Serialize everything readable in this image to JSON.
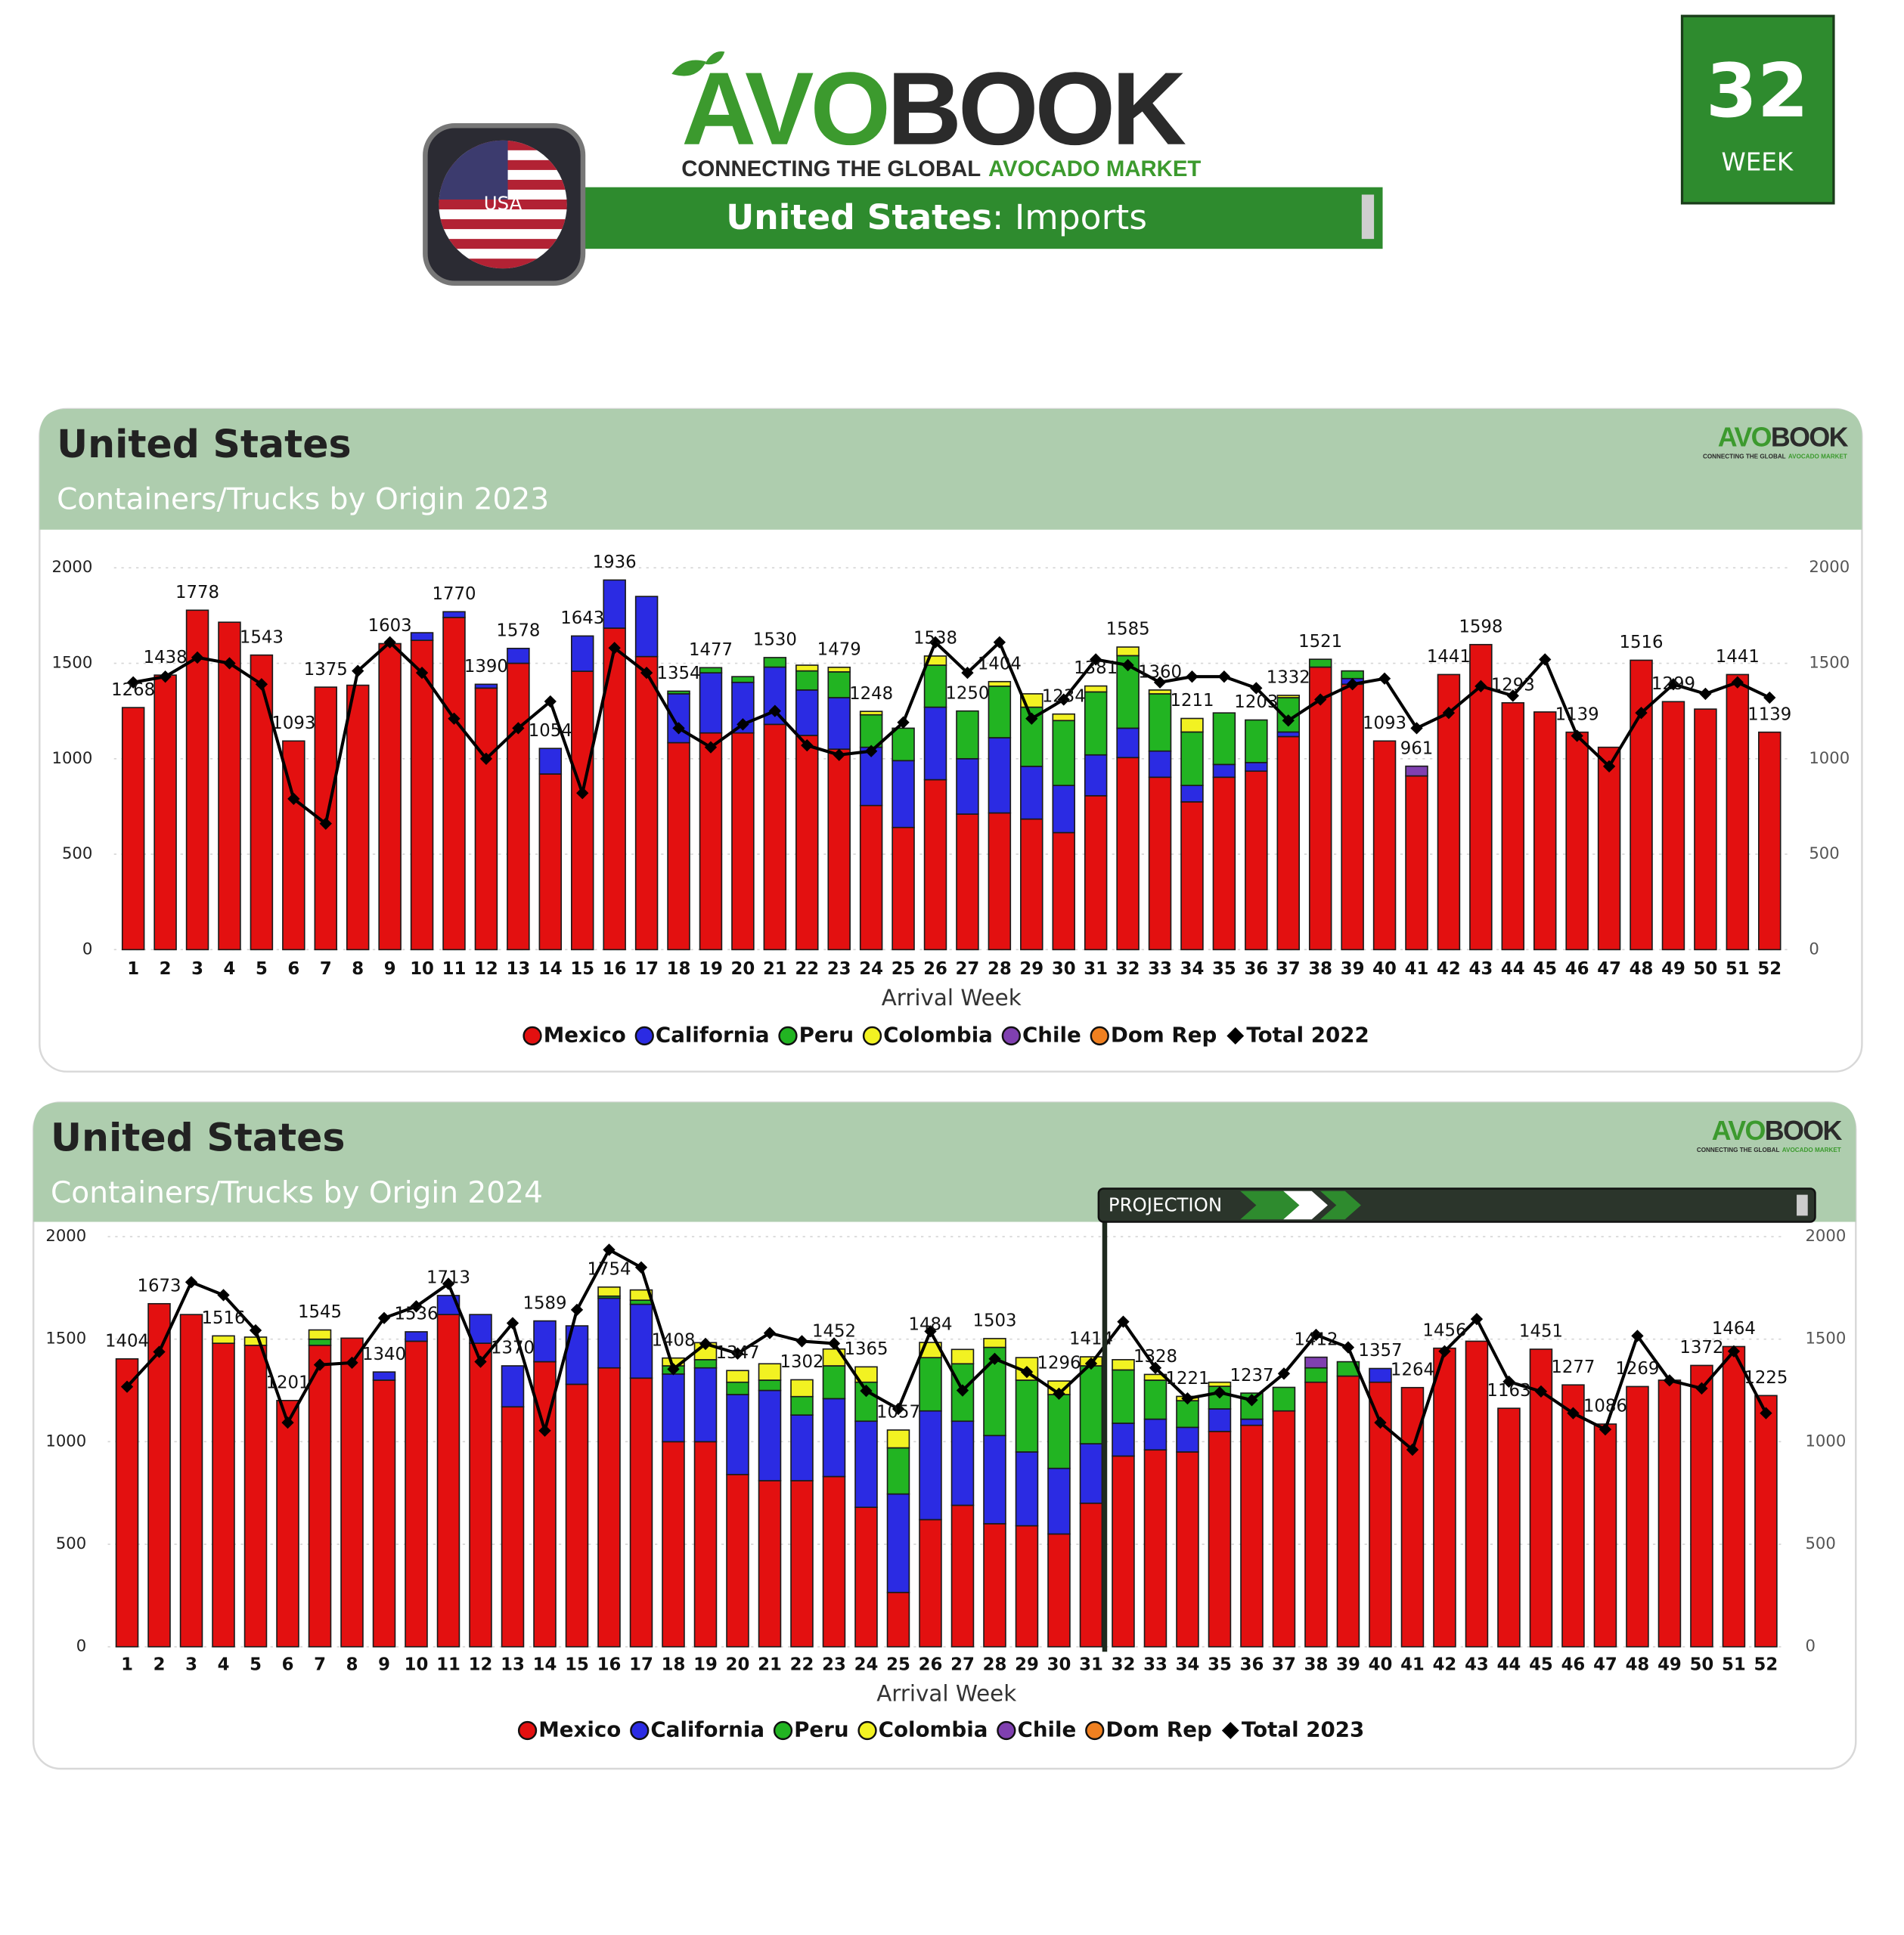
{
  "header": {
    "logo_green": "AVO",
    "logo_dark": "BOOK",
    "tagline_dark": "CONNECTING THE GLOBAL",
    "tagline_green": "AVOCADO MARKET",
    "banner_bold": "United States",
    "banner_rest": ": Imports",
    "flag_label": "USA",
    "week_number": 32,
    "week_label": "WEEK"
  },
  "chart_data": [
    {
      "type": "bar",
      "stacked": true,
      "title": "United States",
      "subtitle": "Containers/Trucks by Origin 2023",
      "x_label": "Arrival Week",
      "categories": [
        "1",
        "2",
        "3",
        "4",
        "5",
        "6",
        "7",
        "8",
        "9",
        "10",
        "11",
        "12",
        "13",
        "14",
        "15",
        "16",
        "17",
        "18",
        "19",
        "20",
        "21",
        "22",
        "23",
        "24",
        "25",
        "26",
        "27",
        "28",
        "29",
        "30",
        "31",
        "32",
        "33",
        "34",
        "35",
        "36",
        "37",
        "38",
        "39",
        "40",
        "41",
        "42",
        "43",
        "44",
        "45",
        "46",
        "47",
        "48",
        "49",
        "50",
        "51",
        "52"
      ],
      "ylim": [
        0,
        2000
      ],
      "yticks": [
        0,
        500,
        1000,
        1500,
        2000
      ],
      "y2lim": [
        0,
        2000
      ],
      "y2ticks": [
        0,
        500,
        1000,
        1500,
        2000
      ],
      "grid": true,
      "legend": "bottom",
      "series": [
        {
          "name": "Mexico",
          "color": "#e31010",
          "values": [
            1268,
            1438,
            1778,
            1715,
            1543,
            1093,
            1375,
            1385,
            1603,
            1620,
            1740,
            1370,
            1500,
            920,
            1458,
            1684,
            1535,
            1084,
            1135,
            1135,
            1180,
            1122,
            1050,
            755,
            640,
            890,
            710,
            716,
            684,
            613,
            806,
            1006,
            903,
            774,
            903,
            935,
            1116,
            1480,
            1390,
            1093,
            910,
            1441,
            1598,
            1293,
            1245,
            1139,
            1060,
            1516,
            1299,
            1260,
            1441,
            1139
          ]
        },
        {
          "name": "California",
          "color": "#2b2be3",
          "values": [
            0,
            0,
            0,
            0,
            0,
            0,
            0,
            0,
            0,
            40,
            30,
            20,
            78,
            134,
            185,
            252,
            315,
            256,
            315,
            265,
            300,
            238,
            270,
            305,
            350,
            380,
            290,
            394,
            276,
            247,
            214,
            154,
            137,
            86,
            67,
            45,
            24,
            0,
            30,
            0,
            0,
            0,
            0,
            0,
            0,
            0,
            0,
            0,
            0,
            0,
            0,
            0
          ]
        },
        {
          "name": "Peru",
          "color": "#22b422",
          "values": [
            0,
            0,
            0,
            0,
            0,
            0,
            0,
            0,
            0,
            0,
            0,
            0,
            0,
            0,
            0,
            0,
            0,
            14,
            27,
            30,
            50,
            100,
            135,
            170,
            170,
            220,
            250,
            270,
            310,
            340,
            330,
            380,
            300,
            280,
            270,
            223,
            180,
            41,
            40,
            0,
            0,
            0,
            0,
            0,
            0,
            0,
            0,
            0,
            0,
            0,
            0,
            0
          ]
        },
        {
          "name": "Colombia",
          "color": "#f2f222",
          "values": [
            0,
            0,
            0,
            0,
            0,
            0,
            0,
            0,
            0,
            0,
            0,
            0,
            0,
            0,
            0,
            0,
            0,
            0,
            0,
            0,
            0,
            30,
            24,
            18,
            0,
            48,
            0,
            24,
            70,
            34,
            31,
            45,
            20,
            71,
            0,
            0,
            12,
            0,
            0,
            0,
            0,
            0,
            0,
            0,
            0,
            0,
            0,
            0,
            0,
            0,
            0,
            0
          ]
        },
        {
          "name": "Chile",
          "color": "#8040b0",
          "values": [
            0,
            0,
            0,
            0,
            0,
            0,
            0,
            0,
            0,
            0,
            0,
            0,
            0,
            0,
            0,
            0,
            0,
            0,
            0,
            0,
            0,
            0,
            0,
            0,
            0,
            0,
            0,
            0,
            0,
            0,
            0,
            0,
            0,
            0,
            0,
            0,
            0,
            0,
            0,
            0,
            51,
            0,
            0,
            0,
            0,
            0,
            0,
            0,
            0,
            0,
            0,
            0
          ]
        },
        {
          "name": "Dom Rep",
          "color": "#f08020",
          "values": [
            0,
            0,
            0,
            0,
            0,
            0,
            0,
            0,
            0,
            0,
            0,
            0,
            0,
            0,
            0,
            0,
            0,
            0,
            0,
            0,
            0,
            0,
            0,
            0,
            0,
            0,
            0,
            0,
            0,
            0,
            0,
            0,
            0,
            0,
            0,
            0,
            0,
            0,
            0,
            0,
            0,
            0,
            0,
            0,
            0,
            0,
            0,
            0,
            0,
            0,
            0,
            0
          ]
        },
        {
          "name": "Total 2022",
          "type": "line",
          "axis": "y2",
          "color": "#000000",
          "values": [
            1400,
            1430,
            1530,
            1500,
            1390,
            790,
            660,
            1460,
            1610,
            1450,
            1210,
            1000,
            1160,
            1300,
            820,
            1580,
            1450,
            1160,
            1060,
            1180,
            1250,
            1070,
            1020,
            1040,
            1190,
            1610,
            1450,
            1610,
            1210,
            1310,
            1520,
            1490,
            1400,
            1430,
            1430,
            1370,
            1200,
            1310,
            1390,
            1420,
            1160,
            1240,
            1380,
            1330,
            1520,
            1120,
            960,
            1240,
            1390,
            1340,
            1400,
            1320
          ]
        }
      ],
      "total_labels": [
        1268,
        1438,
        1778,
        null,
        1543,
        1093,
        1375,
        null,
        1603,
        null,
        1770,
        1390,
        1578,
        1054,
        1643,
        1936,
        null,
        1354,
        1477,
        null,
        1530,
        null,
        1479,
        1248,
        null,
        1538,
        1250,
        1404,
        null,
        1234,
        1381,
        1585,
        1360,
        1211,
        null,
        1203,
        1332,
        1521,
        null,
        1093,
        961,
        1441,
        1598,
        1293,
        null,
        1139,
        null,
        1516,
        1299,
        null,
        1441,
        1139
      ]
    },
    {
      "type": "bar",
      "stacked": true,
      "title": "United States",
      "subtitle": "Containers/Trucks by Origin 2024",
      "x_label": "Arrival Week",
      "categories": [
        "1",
        "2",
        "3",
        "4",
        "5",
        "6",
        "7",
        "8",
        "9",
        "10",
        "11",
        "12",
        "13",
        "14",
        "15",
        "16",
        "17",
        "18",
        "19",
        "20",
        "21",
        "22",
        "23",
        "24",
        "25",
        "26",
        "27",
        "28",
        "29",
        "30",
        "31",
        "32",
        "33",
        "34",
        "35",
        "36",
        "37",
        "38",
        "39",
        "40",
        "41",
        "42",
        "43",
        "44",
        "45",
        "46",
        "47",
        "48",
        "49",
        "50",
        "51",
        "52"
      ],
      "ylim": [
        0,
        2000
      ],
      "yticks": [
        0,
        500,
        1000,
        1500,
        2000
      ],
      "y2lim": [
        0,
        2000
      ],
      "y2ticks": [
        0,
        500,
        1000,
        1500,
        2000
      ],
      "grid": true,
      "legend": "bottom",
      "series": [
        {
          "name": "Mexico",
          "color": "#e31010",
          "values": [
            1404,
            1673,
            1620,
            1480,
            1470,
            1201,
            1470,
            1505,
            1300,
            1490,
            1620,
            1480,
            1170,
            1390,
            1280,
            1360,
            1310,
            1000,
            1000,
            840,
            810,
            810,
            830,
            680,
            265,
            620,
            690,
            600,
            590,
            550,
            700,
            930,
            960,
            950,
            1050,
            1080,
            1150,
            1290,
            1320,
            1290,
            1264,
            1456,
            1490,
            1163,
            1451,
            1277,
            1086,
            1269,
            1300,
            1372,
            1464,
            1225
          ]
        },
        {
          "name": "California",
          "color": "#2b2be3",
          "values": [
            0,
            0,
            0,
            0,
            0,
            0,
            0,
            0,
            40,
            46,
            93,
            140,
            200,
            199,
            285,
            340,
            360,
            330,
            360,
            390,
            440,
            320,
            380,
            420,
            480,
            530,
            410,
            430,
            360,
            320,
            290,
            160,
            150,
            120,
            110,
            30,
            0,
            0,
            0,
            67,
            0,
            0,
            0,
            0,
            0,
            0,
            0,
            0,
            0,
            0,
            0,
            0
          ]
        },
        {
          "name": "Peru",
          "color": "#22b422",
          "values": [
            0,
            0,
            0,
            0,
            0,
            0,
            30,
            0,
            0,
            0,
            0,
            0,
            0,
            0,
            0,
            10,
            20,
            40,
            40,
            60,
            50,
            90,
            160,
            190,
            225,
            260,
            280,
            430,
            350,
            360,
            380,
            260,
            190,
            130,
            110,
            127,
            115,
            70,
            70,
            0,
            0,
            0,
            0,
            0,
            0,
            0,
            0,
            0,
            0,
            0,
            0,
            0
          ]
        },
        {
          "name": "Colombia",
          "color": "#f2f222",
          "values": [
            0,
            0,
            0,
            36,
            40,
            0,
            45,
            0,
            0,
            0,
            0,
            0,
            0,
            0,
            0,
            44,
            50,
            38,
            83,
            57,
            80,
            82,
            82,
            75,
            87,
            74,
            70,
            43,
            110,
            66,
            44,
            50,
            28,
            21,
            20,
            0,
            0,
            0,
            0,
            0,
            0,
            0,
            0,
            0,
            0,
            0,
            0,
            0,
            0,
            0,
            0,
            0
          ]
        },
        {
          "name": "Chile",
          "color": "#8040b0",
          "values": [
            0,
            0,
            0,
            0,
            0,
            0,
            0,
            0,
            0,
            0,
            0,
            0,
            0,
            0,
            0,
            0,
            0,
            0,
            0,
            0,
            0,
            0,
            0,
            0,
            0,
            0,
            0,
            0,
            0,
            0,
            0,
            0,
            0,
            0,
            0,
            0,
            0,
            52,
            0,
            0,
            0,
            0,
            0,
            0,
            0,
            0,
            0,
            0,
            0,
            0,
            0,
            0
          ]
        },
        {
          "name": "Dom Rep",
          "color": "#f08020",
          "values": [
            0,
            0,
            0,
            0,
            0,
            0,
            0,
            0,
            0,
            0,
            0,
            0,
            0,
            0,
            0,
            0,
            0,
            0,
            0,
            0,
            0,
            0,
            0,
            0,
            0,
            0,
            0,
            0,
            0,
            0,
            0,
            0,
            0,
            0,
            0,
            0,
            0,
            0,
            0,
            0,
            0,
            0,
            0,
            0,
            0,
            0,
            0,
            0,
            0,
            0,
            0,
            0
          ]
        },
        {
          "name": "Total 2023",
          "type": "line",
          "axis": "y2",
          "color": "#000000",
          "values": [
            1268,
            1438,
            1778,
            1715,
            1543,
            1093,
            1375,
            1385,
            1603,
            1660,
            1770,
            1390,
            1578,
            1054,
            1643,
            1936,
            1850,
            1354,
            1477,
            1430,
            1530,
            1490,
            1479,
            1248,
            1160,
            1538,
            1250,
            1404,
            1340,
            1234,
            1381,
            1585,
            1360,
            1211,
            1240,
            1203,
            1332,
            1521,
            1460,
            1093,
            961,
            1441,
            1598,
            1293,
            1245,
            1139,
            1060,
            1516,
            1299,
            1260,
            1441,
            1139
          ]
        }
      ],
      "total_labels": [
        1404,
        1673,
        null,
        1516,
        null,
        1201,
        1545,
        null,
        1340,
        1536,
        1713,
        null,
        1370,
        1589,
        null,
        1754,
        null,
        1408,
        null,
        1347,
        null,
        1302,
        1452,
        1365,
        1057,
        1484,
        null,
        1503,
        null,
        1296,
        1414,
        null,
        1328,
        1221,
        null,
        1237,
        null,
        1412,
        null,
        1357,
        1264,
        1456,
        null,
        1163,
        1451,
        1277,
        1086,
        1269,
        null,
        1372,
        1464,
        1225
      ],
      "projection": {
        "label": "PROJECTION",
        "start": "32"
      }
    }
  ]
}
